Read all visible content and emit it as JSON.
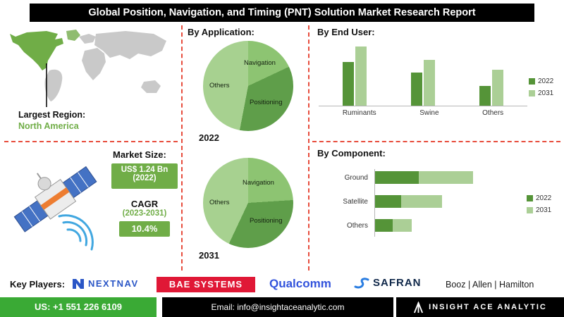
{
  "title": "Global Position, Navigation, and Timing (PNT) Solution Market Research Report",
  "region": {
    "label": "Largest Region:",
    "value": "North America"
  },
  "market": {
    "size_label": "Market Size:",
    "size_line1": "US$ 1.24 Bn",
    "size_line2": "(2022)",
    "cagr_label": "CAGR",
    "cagr_period": "(2023-2031)",
    "cagr_value": "10.4%"
  },
  "sections": {
    "application": "By Application:",
    "end_user": "By End User:",
    "component": "By Component:"
  },
  "colors": {
    "accent_green": "#70ad47",
    "dark_green": "#559438",
    "light_green": "#abcf96",
    "dashed_line_red": "#e74c3c",
    "footer_green": "#3aaa35",
    "bae_red": "#e01836",
    "nextnav_blue": "#2a56c6",
    "qualcomm_blue": "#3253dc",
    "safran_blue": "#2a7de1",
    "title_bar_black": "#000000",
    "map_gray": "#c9c9c9"
  },
  "chart_data": [
    {
      "type": "pie",
      "section": "By Application:",
      "year": "2022",
      "labels": [
        "Navigation",
        "Positioning",
        "Others"
      ],
      "values": [
        18,
        35,
        47
      ],
      "colors": [
        "#8dc472",
        "#5f9e4a",
        "#a7d190"
      ],
      "units": "percent share (not labeled on chart)"
    },
    {
      "type": "pie",
      "section": "By Application:",
      "year": "2031",
      "labels": [
        "Navigation",
        "Positioning",
        "Others"
      ],
      "values": [
        24,
        33,
        43
      ],
      "colors": [
        "#8dc472",
        "#5f9e4a",
        "#a7d190"
      ],
      "units": "percent share (not labeled on chart)"
    },
    {
      "type": "bar",
      "section": "By End User:",
      "categories": [
        "Ruminants",
        "Swine",
        "Others"
      ],
      "series": [
        {
          "name": "2022",
          "color": "#559438",
          "values": [
            55,
            42,
            25
          ]
        },
        {
          "name": "2031",
          "color": "#abcf96",
          "values": [
            75,
            58,
            45
          ]
        }
      ],
      "ylim": [
        0,
        80
      ],
      "legend": "right",
      "grid": false,
      "units": "relative (no axis values shown)"
    },
    {
      "type": "bar",
      "orientation": "horizontal",
      "stacked": true,
      "section": "By Component:",
      "categories": [
        "Ground",
        "Satellite",
        "Others"
      ],
      "series": [
        {
          "name": "2022",
          "color": "#559438",
          "values": [
            63,
            38,
            26
          ]
        },
        {
          "name": "2031",
          "color": "#abcf96",
          "values": [
            77,
            58,
            27
          ]
        }
      ],
      "legend": "right",
      "grid": false,
      "units": "relative (no axis values shown)"
    }
  ],
  "key_players": {
    "label": "Key Players:",
    "nextnav": "NEXTNAV",
    "bae": "BAE SYSTEMS",
    "qualcomm": "Qualcomm",
    "safran": "SAFRAN",
    "booz": "Booz | Allen | Hamilton"
  },
  "footer": {
    "phone": "US: +1 551 226 6109",
    "email": "Email: info@insightaceanalytic.com",
    "brand": "INSIGHT ACE ANALYTIC"
  }
}
